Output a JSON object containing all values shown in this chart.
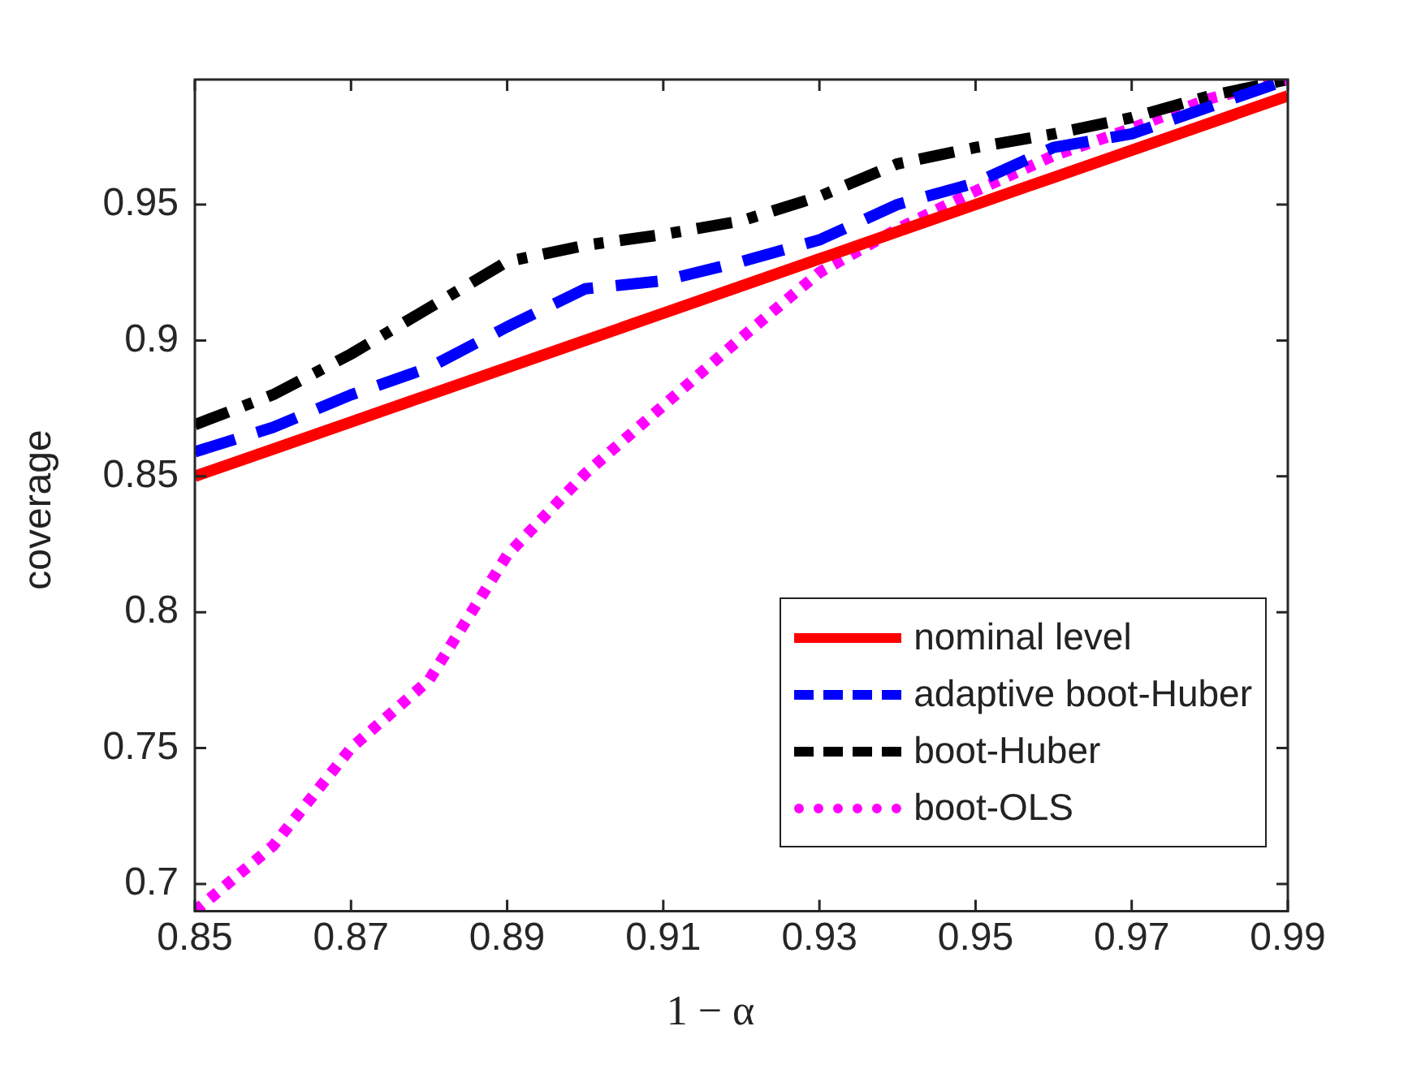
{
  "chart_data": {
    "type": "line",
    "xlabel": "1 − α",
    "ylabel": "coverage",
    "x": [
      0.85,
      0.86,
      0.87,
      0.88,
      0.89,
      0.9,
      0.91,
      0.92,
      0.93,
      0.94,
      0.95,
      0.96,
      0.97,
      0.98,
      0.99
    ],
    "xlim": [
      0.85,
      0.99
    ],
    "xticks": [
      0.85,
      0.87,
      0.89,
      0.91,
      0.93,
      0.95,
      0.97,
      0.99
    ],
    "ylim": [
      0.69,
      0.996
    ],
    "yticks": [
      0.7,
      0.75,
      0.8,
      0.85,
      0.9,
      0.95
    ],
    "grid": false,
    "legend": "bottom right",
    "marker": "none",
    "series": [
      {
        "name": "nominal level",
        "color": "#ff0000",
        "line_style": "solid",
        "values": [
          0.85,
          0.86,
          0.87,
          0.88,
          0.89,
          0.9,
          0.91,
          0.92,
          0.93,
          0.94,
          0.95,
          0.96,
          0.97,
          0.98,
          0.99
        ]
      },
      {
        "name": "adaptive boot-Huber",
        "color": "#0000ff",
        "line_style": "dashed",
        "values": [
          0.859,
          0.868,
          0.88,
          0.89,
          0.905,
          0.919,
          0.922,
          0.929,
          0.937,
          0.95,
          0.958,
          0.971,
          0.976,
          0.986,
          0.996
        ]
      },
      {
        "name": "boot-Huber",
        "color": "#000000",
        "line_style": "dashdot",
        "values": [
          0.869,
          0.88,
          0.895,
          0.912,
          0.929,
          0.935,
          0.939,
          0.944,
          0.953,
          0.965,
          0.971,
          0.976,
          0.982,
          0.99,
          0.996
        ]
      },
      {
        "name": "boot-OLS",
        "color": "#ff00ff",
        "line_style": "dotted",
        "values": [
          0.69,
          0.714,
          0.75,
          0.775,
          0.821,
          0.851,
          0.876,
          0.901,
          0.925,
          0.941,
          0.955,
          0.968,
          0.978,
          0.989,
          0.996
        ]
      }
    ]
  }
}
